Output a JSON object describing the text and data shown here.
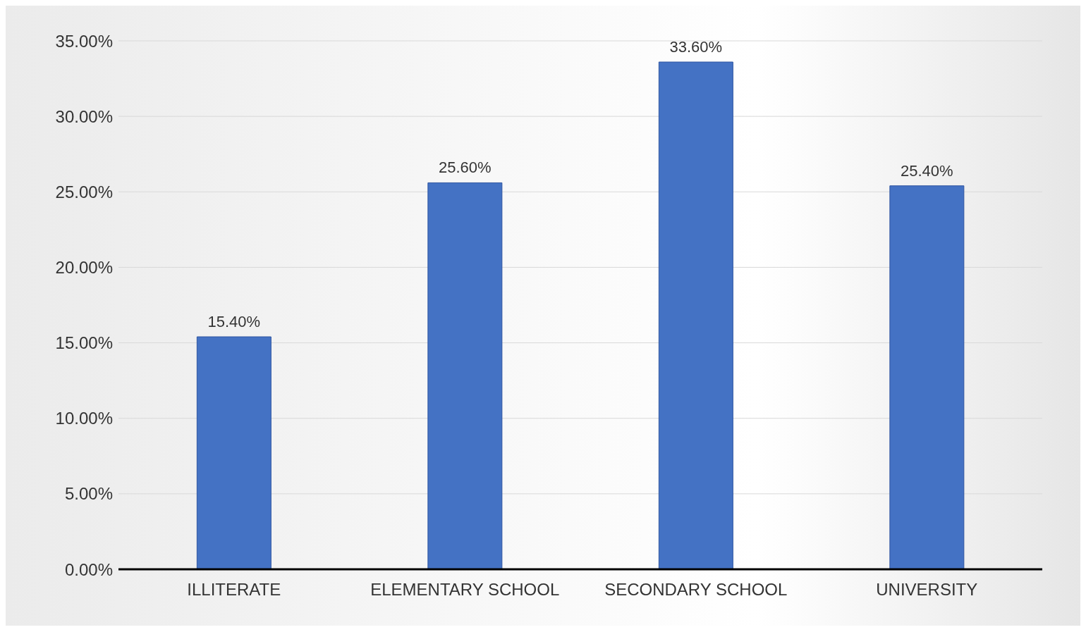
{
  "chart_data": {
    "type": "bar",
    "categories": [
      "ILLITERATE",
      "ELEMENTARY SCHOOL",
      "SECONDARY SCHOOL",
      "UNIVERSITY"
    ],
    "values": [
      15.4,
      25.6,
      33.6,
      25.4
    ],
    "value_labels": [
      "15.40%",
      "25.60%",
      "33.60%",
      "25.40%"
    ],
    "color": "#4472c4",
    "ylim": [
      0,
      35
    ],
    "yticks": [
      {
        "value": 0,
        "label": "0.00%"
      },
      {
        "value": 5,
        "label": "5.00%"
      },
      {
        "value": 10,
        "label": "10.00%"
      },
      {
        "value": 15,
        "label": "15.00%"
      },
      {
        "value": 20,
        "label": "20.00%"
      },
      {
        "value": 25,
        "label": "25.00%"
      },
      {
        "value": 30,
        "label": "30.00%"
      },
      {
        "value": 35,
        "label": "35.00%"
      }
    ],
    "grid": "y",
    "legend": false
  }
}
